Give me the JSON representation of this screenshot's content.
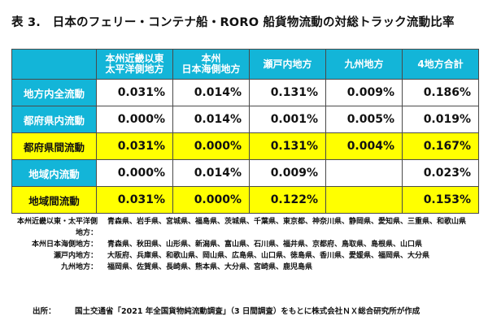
{
  "title": "表 3.　日本のフェリー・コンテナ船・RORO 船貨物流動の対総トラック流動比率",
  "columns": [
    [
      "本州近畿以東",
      "太平洋側地方"
    ],
    [
      "本州",
      "日本海側地方"
    ],
    [
      "瀬戸内地方"
    ],
    [
      "九州地方"
    ],
    [
      "4地方合計"
    ]
  ],
  "rows": [
    {
      "label": "地方内全流動",
      "values": [
        "0.031%",
        "0.014%",
        "0.131%",
        "0.009%",
        "0.186%"
      ],
      "highlight": false
    },
    {
      "label": "都府県内流動",
      "values": [
        "0.000%",
        "0.014%",
        "0.001%",
        "0.005%",
        "0.019%"
      ],
      "highlight": false
    },
    {
      "label": "都府県間流動",
      "values": [
        "0.031%",
        "0.000%",
        "0.131%",
        "0.004%",
        "0.167%"
      ],
      "highlight": true
    },
    {
      "label": "地域内流動",
      "values": [
        "0.000%",
        "0.014%",
        "0.009%",
        "",
        "0.023%"
      ],
      "highlight": false
    },
    {
      "label": "地域間流動",
      "values": [
        "0.031%",
        "0.000%",
        "0.122%",
        "",
        "0.153%"
      ],
      "highlight": true
    }
  ],
  "notes": [
    {
      "label": "本州近畿以東・太平洋側地方：",
      "text": "青森県、岩手県、宮城県、福島県、茨城県、千葉県、東京都、神奈川県、静岡県、愛知県、三重県、和歌山県"
    },
    {
      "label": "本州日本海側地方：",
      "text": "青森県、秋田県、山形県、新潟県、富山県、石川県、福井県、京都府、鳥取県、島根県、山口県"
    },
    {
      "label": "瀬戸内地方：",
      "text": "大阪府、兵庫県、和歌山県、岡山県、広島県、山口県、徳島県、香川県、愛媛県、福岡県、大分県"
    },
    {
      "label": "九州地方：",
      "text": "福岡県、佐賀県、長崎県、熊本県、大分県、宮崎県、鹿児島県"
    }
  ],
  "source": {
    "label": "出所：",
    "text": "国土交通省「2021 年全国貨物純流動調査」（3 日間調査）をもとに株式会社ＮＸ総合研究所が作成"
  },
  "colors": {
    "header_bg": "#13b5d8",
    "highlight_bg": "#ffff00"
  }
}
